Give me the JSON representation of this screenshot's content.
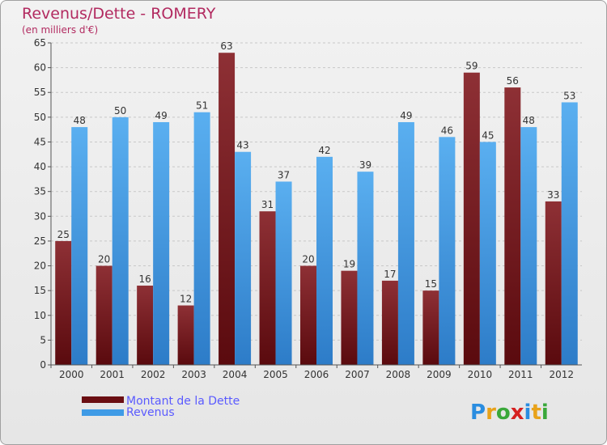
{
  "chart_data": {
    "type": "bar",
    "title": "Revenus/Dette - ROMERY",
    "subtitle": "(en milliers d'€)",
    "categories": [
      "2000",
      "2001",
      "2002",
      "2003",
      "2004",
      "2005",
      "2006",
      "2007",
      "2008",
      "2009",
      "2010",
      "2011",
      "2012"
    ],
    "series": [
      {
        "name": "Montant de la Dette",
        "color": "#7a1418",
        "values": [
          25,
          20,
          16,
          12,
          63,
          31,
          20,
          19,
          17,
          15,
          59,
          56,
          33
        ]
      },
      {
        "name": "Revenus",
        "color": "#3f9be6",
        "values": [
          48,
          50,
          49,
          51,
          43,
          37,
          42,
          39,
          49,
          46,
          45,
          48,
          53
        ]
      }
    ],
    "ylim": [
      0,
      65
    ],
    "yticks": [
      0,
      5,
      10,
      15,
      20,
      25,
      30,
      35,
      40,
      45,
      50,
      55,
      60,
      65
    ],
    "grid": true,
    "legend": "bottom-left"
  },
  "logo": {
    "letters": [
      "P",
      "r",
      "o",
      "x",
      "i",
      "t",
      "i"
    ],
    "colors": [
      "#2a8de0",
      "#e8a21a",
      "#3aa83a",
      "#d62020",
      "#2a8de0",
      "#e8a21a",
      "#3aa83a"
    ]
  }
}
